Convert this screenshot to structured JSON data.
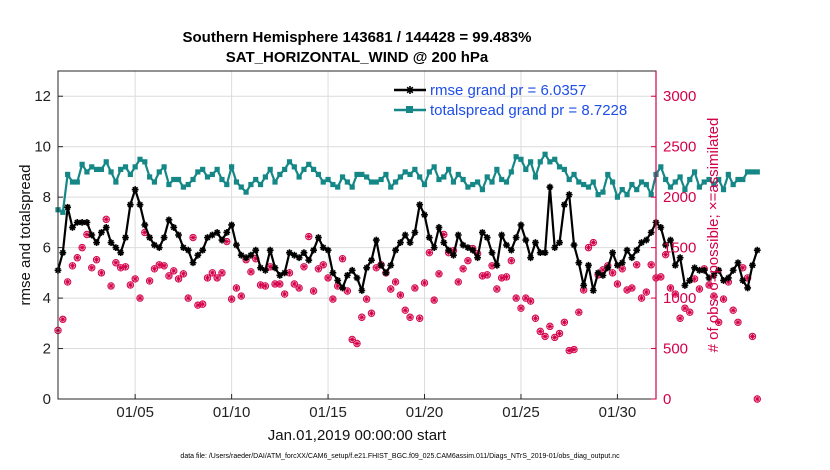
{
  "chart_data": {
    "type": "line",
    "title": "Southern Hemisphere 143681 / 144428 = 99.483%",
    "subtitle": "SAT_HORIZONTAL_WIND @ 200 hPa",
    "xlabel": "Jan.01,2019 00:00:00 start",
    "ylabel": "rmse and totalspread",
    "ylabel_right": "# of obs: o=possible; ×=assimilated",
    "x_tick_labels": [
      "01/05",
      "01/10",
      "01/15",
      "01/20",
      "01/25",
      "01/30"
    ],
    "x_ticks": [
      5,
      10,
      15,
      20,
      25,
      30
    ],
    "xlim": [
      1,
      32
    ],
    "ylim": [
      0,
      13
    ],
    "y_ticks": [
      0,
      2,
      4,
      6,
      8,
      10,
      12
    ],
    "ylim_right": [
      0,
      3250
    ],
    "y_ticks_right": [
      0,
      500,
      1000,
      1500,
      2000,
      2500,
      3000
    ],
    "grid": true,
    "legend_position": "top-right",
    "colors": {
      "rmse": "#000000",
      "totalspread": "#158787",
      "obs": "#d4004a",
      "legend_text": "#1f4ee8"
    },
    "series": [
      {
        "name": "rmse grand pr = 6.0357",
        "axis": "left",
        "x_start": 1,
        "x_step": 0.25,
        "values": [
          5.1,
          5.8,
          7.6,
          6.8,
          7.0,
          7.0,
          7.0,
          6.5,
          6.2,
          6.6,
          6.8,
          6.2,
          6.0,
          5.8,
          6.4,
          7.7,
          8.3,
          7.7,
          6.9,
          6.4,
          6.1,
          6.0,
          6.4,
          7.1,
          6.8,
          6.5,
          6.0,
          5.9,
          5.4,
          5.7,
          5.9,
          6.4,
          6.5,
          6.6,
          6.3,
          6.6,
          6.9,
          6.1,
          5.7,
          5.6,
          5.7,
          5.9,
          5.2,
          5.1,
          5.9,
          5.2,
          4.9,
          5.0,
          5.8,
          5.7,
          5.6,
          5.8,
          5.5,
          5.9,
          6.4,
          6.0,
          5.9,
          5.0,
          4.7,
          4.4,
          4.9,
          5.1,
          4.8,
          4.3,
          5.2,
          5.5,
          6.3,
          5.3,
          5.0,
          5.3,
          5.9,
          6.2,
          6.5,
          6.2,
          6.6,
          7.7,
          7.3,
          6.4,
          6.0,
          6.8,
          6.2,
          5.9,
          5.7,
          6.5,
          6.1,
          6.0,
          5.9,
          5.6,
          6.6,
          6.4,
          5.8,
          5.3,
          6.5,
          6.1,
          5.9,
          6.4,
          6.9,
          6.3,
          5.6,
          6.2,
          5.8,
          5.8,
          8.4,
          6.0,
          6.2,
          7.7,
          8.1,
          6.1,
          5.4,
          4.5,
          5.3,
          4.3,
          5.0,
          4.9,
          5.2,
          5.8,
          5.3,
          5.4,
          5.9,
          5.6,
          5.9,
          6.2,
          6.3,
          6.6,
          7.0,
          6.8,
          6.1,
          6.3,
          5.3,
          5.6,
          4.5,
          4.7,
          5.2,
          5.1,
          5.1,
          4.8,
          4.9,
          5.1,
          4.7,
          4.8,
          5.1,
          5.4,
          4.7,
          4.4,
          5.3,
          5.9
        ]
      },
      {
        "name": "totalspread grand pr = 8.7228",
        "axis": "left",
        "x_start": 1,
        "x_step": 0.25,
        "values": [
          7.5,
          7.4,
          8.9,
          8.6,
          8.6,
          9.3,
          9.0,
          9.2,
          9.1,
          9.1,
          9.4,
          9.0,
          8.6,
          9.1,
          9.2,
          8.9,
          9.2,
          9.5,
          9.4,
          8.8,
          8.6,
          9.0,
          9.2,
          8.5,
          8.7,
          8.7,
          8.4,
          8.5,
          8.7,
          9.0,
          9.1,
          8.8,
          8.9,
          9.1,
          8.7,
          8.5,
          9.2,
          8.6,
          8.4,
          8.2,
          8.5,
          8.7,
          8.5,
          8.8,
          9.1,
          8.6,
          8.9,
          9.1,
          9.4,
          9.2,
          8.8,
          9.1,
          9.3,
          9.1,
          8.9,
          8.6,
          8.7,
          8.5,
          8.4,
          8.8,
          8.6,
          8.4,
          8.9,
          8.9,
          8.8,
          8.6,
          8.6,
          8.7,
          8.9,
          8.4,
          8.6,
          8.8,
          9.0,
          8.9,
          9.1,
          8.8,
          8.5,
          9.0,
          9.2,
          8.7,
          8.8,
          9.1,
          8.6,
          8.9,
          8.7,
          8.4,
          8.5,
          8.6,
          8.3,
          8.8,
          8.6,
          9.1,
          8.7,
          8.6,
          9.0,
          9.6,
          9.5,
          9.1,
          9.4,
          8.8,
          9.4,
          9.7,
          9.4,
          9.5,
          9.2,
          9.1,
          8.7,
          8.9,
          8.6,
          8.5,
          8.4,
          8.6,
          8.1,
          8.2,
          8.9,
          8.6,
          8.0,
          8.3,
          8.1,
          8.5,
          8.3,
          8.6,
          8.5,
          8.1,
          8.9,
          9.2,
          8.7,
          8.4,
          8.6,
          8.8,
          8.3,
          8.7,
          9.0,
          8.4,
          8.6,
          8.7,
          8.5,
          8.7,
          8.3,
          8.9,
          8.5,
          8.7,
          8.7,
          9.0,
          9.0,
          9.0
        ]
      },
      {
        "name": "observations",
        "axis": "right",
        "x_start": 1,
        "x_step": 0.25,
        "values": [
          680,
          790,
          1160,
          1320,
          1400,
          1500,
          1630,
          1300,
          1380,
          1250,
          1780,
          1120,
          1350,
          1300,
          1310,
          1130,
          1190,
          1000,
          1650,
          1170,
          1290,
          1330,
          1320,
          1220,
          1270,
          1190,
          1240,
          1000,
          1600,
          930,
          940,
          1200,
          1250,
          1200,
          1250,
          1560,
          990,
          1100,
          1020,
          1380,
          1260,
          1390,
          1130,
          1120,
          1310,
          1140,
          1140,
          1040,
          1250,
          1140,
          1100,
          1310,
          1610,
          1070,
          1290,
          1330,
          1200,
          990,
          1120,
          1390,
          1070,
          590,
          550,
          810,
          990,
          850,
          1300,
          1330,
          1250,
          1090,
          1160,
          1030,
          880,
          810,
          1100,
          800,
          1150,
          1450,
          980,
          1240,
          1630,
          1450,
          1470,
          1160,
          1290,
          1370,
          1490,
          1440,
          1220,
          1230,
          1320,
          1090,
          1200,
          1210,
          1370,
          1000,
          900,
          1000,
          970,
          800,
          670,
          620,
          720,
          610,
          650,
          760,
          480,
          490,
          860,
          1080,
          1500,
          1550,
          1230,
          1280,
          1320,
          1250,
          1140,
          1290,
          1080,
          1100,
          1330,
          1000,
          1060,
          1330,
          1200,
          1210,
          1430,
          1100,
          1040,
          800,
          900,
          860,
          1190,
          1090,
          1290,
          1130,
          1020,
          760,
          990,
          1160,
          880,
          760,
          1300,
          1200,
          620,
          0
        ]
      }
    ],
    "footnote": "data file: /Users/raeder/DAI/ATM_forcXX/CAM6_setup/f.e21.FHIST_BGC.f09_025.CAM6assim.011/Diags_NTrS_2019-01/obs_diag_output.nc"
  }
}
